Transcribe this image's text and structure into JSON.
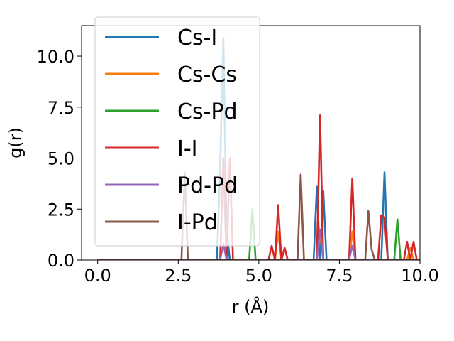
{
  "chart_data": {
    "type": "line",
    "xlabel": "r (Å)",
    "ylabel": "g(r)",
    "xlim": [
      -0.5,
      10.0
    ],
    "ylim": [
      0.0,
      11.5
    ],
    "x_ticks": [
      "0.0",
      "2.5",
      "5.0",
      "7.5",
      "10.0"
    ],
    "x_tick_values": [
      0.0,
      2.5,
      5.0,
      7.5,
      10.0
    ],
    "y_ticks": [
      "0.0",
      "2.5",
      "5.0",
      "7.5",
      "10.0"
    ],
    "y_tick_values": [
      0.0,
      2.5,
      5.0,
      7.5,
      10.0
    ],
    "legend_position": "upper left",
    "grid": false,
    "series": [
      {
        "name": "Cs-I",
        "color": "#1f77b4",
        "points": [
          [
            0,
            0
          ],
          [
            3.7,
            0
          ],
          [
            3.8,
            4.5
          ],
          [
            3.9,
            10.9
          ],
          [
            4.0,
            1.5
          ],
          [
            4.1,
            0
          ],
          [
            6.7,
            0
          ],
          [
            6.8,
            3.6
          ],
          [
            6.9,
            0
          ],
          [
            7.0,
            3.4
          ],
          [
            7.1,
            0
          ],
          [
            8.8,
            0
          ],
          [
            8.9,
            4.3
          ],
          [
            9.0,
            0
          ],
          [
            10.0,
            0
          ]
        ]
      },
      {
        "name": "Cs-Cs",
        "color": "#ff7f0e",
        "points": [
          [
            0,
            0
          ],
          [
            5.5,
            0
          ],
          [
            5.6,
            1.4
          ],
          [
            5.7,
            0
          ],
          [
            6.8,
            0
          ],
          [
            6.9,
            1.3
          ],
          [
            7.0,
            0
          ],
          [
            7.8,
            0
          ],
          [
            7.9,
            1.4
          ],
          [
            8.0,
            0
          ],
          [
            9.6,
            0
          ],
          [
            9.7,
            0.6
          ],
          [
            9.8,
            0
          ],
          [
            10.0,
            0
          ]
        ]
      },
      {
        "name": "Cs-Pd",
        "color": "#2ca02c",
        "points": [
          [
            0,
            0
          ],
          [
            4.7,
            0
          ],
          [
            4.8,
            2.5
          ],
          [
            4.9,
            0
          ],
          [
            9.2,
            0
          ],
          [
            9.3,
            2.0
          ],
          [
            9.4,
            0
          ],
          [
            10.0,
            0
          ]
        ]
      },
      {
        "name": "I-I",
        "color": "#d62728",
        "points": [
          [
            0,
            0
          ],
          [
            3.8,
            0
          ],
          [
            3.9,
            5.0
          ],
          [
            4.0,
            0
          ],
          [
            4.1,
            5.0
          ],
          [
            4.2,
            0
          ],
          [
            5.3,
            0
          ],
          [
            5.4,
            0.7
          ],
          [
            5.5,
            0
          ],
          [
            5.6,
            2.7
          ],
          [
            5.7,
            0
          ],
          [
            5.8,
            0.6
          ],
          [
            5.9,
            0
          ],
          [
            6.8,
            0
          ],
          [
            6.9,
            7.1
          ],
          [
            7.0,
            0
          ],
          [
            7.8,
            0
          ],
          [
            7.9,
            4.0
          ],
          [
            8.0,
            0
          ],
          [
            8.7,
            0
          ],
          [
            8.8,
            2.2
          ],
          [
            8.9,
            2.1
          ],
          [
            9.0,
            0
          ],
          [
            9.5,
            0
          ],
          [
            9.6,
            0.9
          ],
          [
            9.7,
            0
          ],
          [
            9.8,
            0.9
          ],
          [
            9.9,
            0
          ]
        ]
      },
      {
        "name": "Pd-Pd",
        "color": "#9467bd",
        "points": [
          [
            0,
            0
          ],
          [
            3.8,
            0
          ],
          [
            3.9,
            0.8
          ],
          [
            4.0,
            0
          ],
          [
            6.8,
            0
          ],
          [
            6.9,
            1.5
          ],
          [
            7.0,
            0
          ],
          [
            7.8,
            0
          ],
          [
            7.9,
            0.7
          ],
          [
            8.0,
            0
          ],
          [
            10.0,
            0
          ]
        ]
      },
      {
        "name": "I-Pd",
        "color": "#8c564b",
        "points": [
          [
            0,
            0
          ],
          [
            2.6,
            0
          ],
          [
            2.7,
            4.3
          ],
          [
            2.8,
            0
          ],
          [
            6.2,
            0
          ],
          [
            6.3,
            4.2
          ],
          [
            6.4,
            0
          ],
          [
            8.3,
            0
          ],
          [
            8.4,
            2.4
          ],
          [
            8.5,
            0.5
          ],
          [
            8.6,
            0
          ],
          [
            10.0,
            0
          ]
        ]
      }
    ]
  }
}
